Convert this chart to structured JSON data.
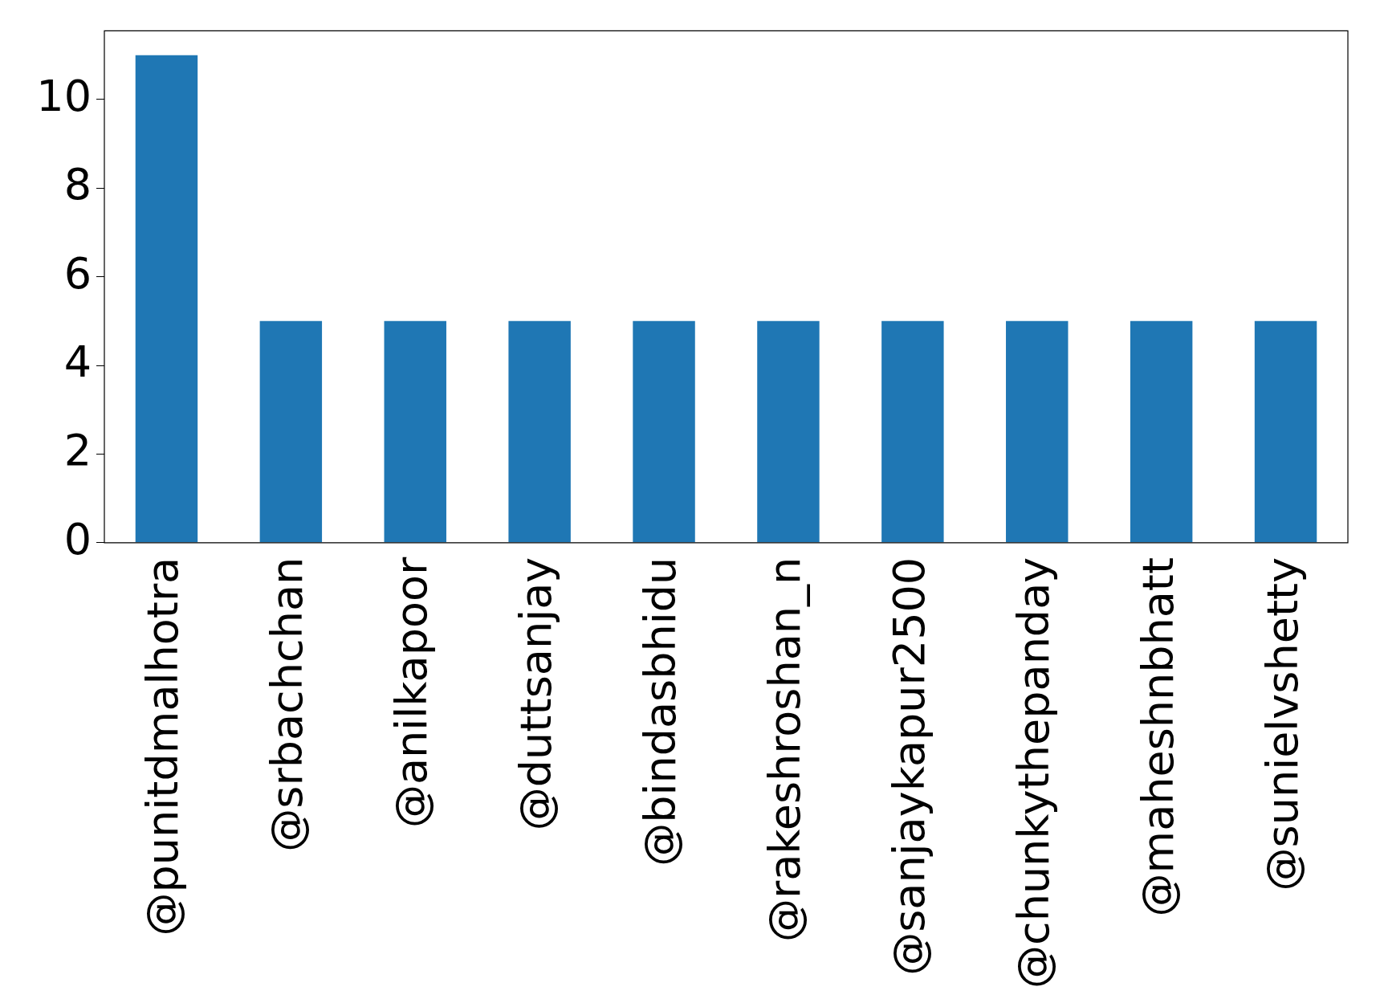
{
  "chart_data": {
    "type": "bar",
    "categories": [
      "@punitdmalhotra",
      "@srbachchan",
      "@anilkapoor",
      "@duttsanjay",
      "@bindasbhidu",
      "@rakeshroshan_n",
      "@sanjaykapur2500",
      "@chunkythepanday",
      "@maheshnbhatt",
      "@sunielvshetty"
    ],
    "values": [
      11,
      5,
      5,
      5,
      5,
      5,
      5,
      5,
      5,
      5
    ],
    "color": "#1f77b4",
    "ylim": [
      0,
      11.55
    ],
    "yticks": [
      0,
      2,
      4,
      6,
      8,
      10
    ]
  }
}
